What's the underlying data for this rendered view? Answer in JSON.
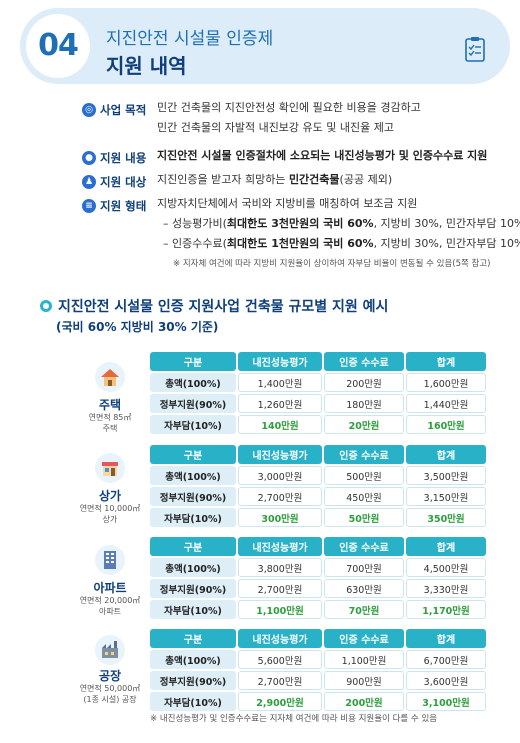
{
  "header": {
    "number": "04",
    "subtitle": "지진안전 시설물 인증제",
    "title": "지원 내역"
  },
  "info": {
    "purpose": {
      "label": "사업 목적",
      "lines": [
        "민간 건축물의 지진안전성 확인에 필요한 비용을 경감하고",
        "민간 건축물의 자발적 내진보강 유도 및 내진율 제고"
      ]
    },
    "content": {
      "label": "지원 내용",
      "text": "지진안전 시설물 인증절차에 소요되는 내진성능평가 및 인증수수료 지원"
    },
    "target": {
      "label": "지원 대상",
      "text_a": "지진인증을 받고자 희망하는 ",
      "text_b": "민간건축물",
      "text_c": "(공공 제외)"
    },
    "form": {
      "label": "지원 형태",
      "line1": "지방자치단체에서 국비와 지방비를 매칭하여 보조금 지원",
      "line2_a": "– 성능평가비(",
      "line2_b": "최대한도 3천만원의 국비 60%",
      "line2_c": ", 지방비 30%, 민간자부담 10%)",
      "line3_a": "– 인증수수료(",
      "line3_b": "최대한도 1천만원의 국비 60%",
      "line3_c": ", 지방비 30%, 민간자부담 10%)",
      "note": "※ 지자체 여건에 따라 지방비 지원율이 상이하여 자부담 비율이 변동될 수 있음(5쪽 참고)"
    }
  },
  "section": {
    "title": "지진안전 시설물 인증 지원사업 건축물 규모별 지원 예시",
    "subtitle": "(국비 60% 지방비 30% 기준)"
  },
  "table_headers": [
    "구분",
    "내진성능평가",
    "인증 수수료",
    "합계"
  ],
  "row_labels": [
    "총액(100%)",
    "정부지원(90%)",
    "자부담(10%)"
  ],
  "buildings": [
    {
      "name": "주택",
      "desc1": "연면적 85㎡",
      "desc2": "주택",
      "rows": [
        [
          "1,400만원",
          "200만원",
          "1,600만원"
        ],
        [
          "1,260만원",
          "180만원",
          "1,440만원"
        ],
        [
          "140만원",
          "20만원",
          "160만원"
        ]
      ]
    },
    {
      "name": "상가",
      "desc1": "연면적 10,000㎡",
      "desc2": "상가",
      "rows": [
        [
          "3,000만원",
          "500만원",
          "3,500만원"
        ],
        [
          "2,700만원",
          "450만원",
          "3,150만원"
        ],
        [
          "300만원",
          "50만원",
          "350만원"
        ]
      ]
    },
    {
      "name": "아파트",
      "desc1": "연면적 20,000㎡",
      "desc2": "아파트",
      "rows": [
        [
          "3,800만원",
          "700만원",
          "4,500만원"
        ],
        [
          "2,700만원",
          "630만원",
          "3,330만원"
        ],
        [
          "1,100만원",
          "70만원",
          "1,170만원"
        ]
      ]
    },
    {
      "name": "공장",
      "desc1": "연면적 50,000㎡",
      "desc2": "(1종 시설) 공장",
      "rows": [
        [
          "5,600만원",
          "1,100만원",
          "6,700만원"
        ],
        [
          "2,700만원",
          "900만원",
          "3,600만원"
        ],
        [
          "2,900만원",
          "200만원",
          "3,100만원"
        ]
      ]
    }
  ],
  "footnote": "※ 내진성능평가 및 인증수수료는 지자체 여건에 따라 비용 지원율이 다를 수 있음",
  "colors": {
    "primary": "#1f6fb5",
    "dark": "#0f3f7a",
    "header_bg": "#dcecf9",
    "table_head": "#29b2c7",
    "highlight": "#2e9e3e"
  }
}
